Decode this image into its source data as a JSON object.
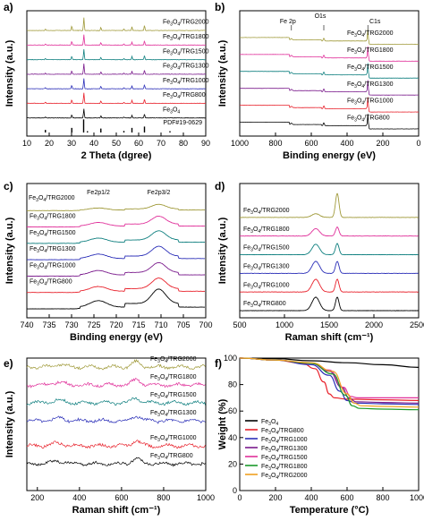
{
  "colors": {
    "black": "#000000",
    "red": "#e8202a",
    "blue": "#2b2fb8",
    "purple": "#7a1a8c",
    "teal": "#0e7f7f",
    "magenta": "#e0309a",
    "olive": "#a09a3a",
    "green": "#1a9a2a",
    "orange": "#f0a020"
  },
  "chart_data": [
    {
      "panel": "a)",
      "type": "line",
      "xlabel": "2 Theta (dgree)",
      "ylabel": "Intensity (a.u.)",
      "xlim": [
        10,
        90
      ],
      "xticks": [
        10,
        20,
        30,
        40,
        50,
        60,
        70,
        80,
        90
      ],
      "reference_label": "PDF#19-0629",
      "reference_peaks": [
        {
          "x": 18.3,
          "h": 0.2
        },
        {
          "x": 30.1,
          "h": 0.35
        },
        {
          "x": 35.4,
          "h": 1.0
        },
        {
          "x": 37.1,
          "h": 0.1
        },
        {
          "x": 43.1,
          "h": 0.3
        },
        {
          "x": 53.4,
          "h": 0.12
        },
        {
          "x": 57.0,
          "h": 0.35
        },
        {
          "x": 62.6,
          "h": 0.45
        },
        {
          "x": 74.0,
          "h": 0.1
        }
      ],
      "peaks": [
        {
          "x": 18.3,
          "h": 0.12
        },
        {
          "x": 30.1,
          "h": 0.35
        },
        {
          "x": 35.5,
          "h": 1.0
        },
        {
          "x": 43.1,
          "h": 0.25
        },
        {
          "x": 53.4,
          "h": 0.12
        },
        {
          "x": 57.0,
          "h": 0.3
        },
        {
          "x": 62.6,
          "h": 0.4
        }
      ],
      "series": [
        {
          "name_main": "Fe",
          "name_sub": "3",
          "name_rest": "O",
          "name_sub2": "4",
          "name_tail": "/TRG2000",
          "color": "#a09a3a",
          "offset": 7,
          "peak_scale": 1.0
        },
        {
          "name_main": "Fe",
          "name_sub": "3",
          "name_rest": "O",
          "name_sub2": "4",
          "name_tail": "/TRG1800",
          "color": "#e0309a",
          "offset": 6,
          "peak_scale": 0.8
        },
        {
          "name_main": "Fe",
          "name_sub": "3",
          "name_rest": "O",
          "name_sub2": "4",
          "name_tail": "/TRG1500",
          "color": "#0e7f7f",
          "offset": 5,
          "peak_scale": 0.8
        },
        {
          "name_main": "Fe",
          "name_sub": "3",
          "name_rest": "O",
          "name_sub2": "4",
          "name_tail": "/TRG1300",
          "color": "#7a1a8c",
          "offset": 4,
          "peak_scale": 0.8
        },
        {
          "name_main": "Fe",
          "name_sub": "3",
          "name_rest": "O",
          "name_sub2": "4",
          "name_tail": "/TRG1000",
          "color": "#2b2fb8",
          "offset": 3,
          "peak_scale": 0.8
        },
        {
          "name_main": "Fe",
          "name_sub": "3",
          "name_rest": "O",
          "name_sub2": "4",
          "name_tail": "/TRG800",
          "color": "#e8202a",
          "offset": 2,
          "peak_scale": 0.8
        },
        {
          "name_main": "Fe",
          "name_sub": "3",
          "name_rest": "O",
          "name_sub2": "4",
          "name_tail": "",
          "color": "#000000",
          "offset": 1,
          "peak_scale": 0.7
        }
      ]
    },
    {
      "panel": "b)",
      "type": "line",
      "xlabel": "Binding energy (eV)",
      "ylabel": "Intensity (a.u.)",
      "xlim": [
        1000,
        0
      ],
      "xticks": [
        1000,
        800,
        600,
        400,
        200,
        0
      ],
      "annotations": [
        {
          "text": "Fe 2p",
          "x": 711
        },
        {
          "text": "O1s",
          "x": 530
        },
        {
          "text": "C1s",
          "x": 284
        }
      ],
      "series": [
        {
          "name_main": "Fe",
          "name_sub": "3",
          "name_rest": "O",
          "name_sub2": "4",
          "name_tail": "/TRG2000",
          "color": "#a09a3a",
          "offset": 6
        },
        {
          "name_main": "Fe",
          "name_sub": "3",
          "name_rest": "O",
          "name_sub2": "4",
          "name_tail": "/TRG1800",
          "color": "#e0309a",
          "offset": 5
        },
        {
          "name_main": "Fe",
          "name_sub": "3",
          "name_rest": "O",
          "name_sub2": "4",
          "name_tail": "/TRG1500",
          "color": "#0e7f7f",
          "offset": 4
        },
        {
          "name_main": "Fe",
          "name_sub": "3",
          "name_rest": "O",
          "name_sub2": "4",
          "name_tail": "/TRG1300",
          "color": "#7a1a8c",
          "offset": 3
        },
        {
          "name_main": "Fe",
          "name_sub": "3",
          "name_rest": "O",
          "name_sub2": "4",
          "name_tail": "/TRG1000",
          "color": "#e8202a",
          "offset": 2
        },
        {
          "name_main": "Fe",
          "name_sub": "3",
          "name_rest": "O",
          "name_sub2": "4",
          "name_tail": "/TRG800",
          "color": "#000000",
          "offset": 1
        }
      ]
    },
    {
      "panel": "c)",
      "type": "line",
      "xlabel": "Binding energy (eV)",
      "ylabel": "Intensity (a.u.)",
      "xlim": [
        740,
        700
      ],
      "xticks": [
        740,
        735,
        730,
        725,
        720,
        715,
        710,
        705,
        700
      ],
      "annotations": [
        {
          "text": "Fe2p1/2",
          "x": 724
        },
        {
          "text": "Fe2p3/2",
          "x": 710.5
        }
      ],
      "series": [
        {
          "name_main": "Fe",
          "name_sub": "3",
          "name_rest": "O",
          "name_sub2": "4",
          "name_tail": "/TRG2000",
          "color": "#a09a3a",
          "offset": 6,
          "amp": 0.35
        },
        {
          "name_main": "Fe",
          "name_sub": "3",
          "name_rest": "O",
          "name_sub2": "4",
          "name_tail": "/TRG1800",
          "color": "#e0309a",
          "offset": 5,
          "amp": 0.6
        },
        {
          "name_main": "Fe",
          "name_sub": "3",
          "name_rest": "O",
          "name_sub2": "4",
          "name_tail": "/TRG1500",
          "color": "#0e7f7f",
          "offset": 4,
          "amp": 0.7
        },
        {
          "name_main": "Fe",
          "name_sub": "3",
          "name_rest": "O",
          "name_sub2": "4",
          "name_tail": "/TRG1300",
          "color": "#2b2fb8",
          "offset": 3,
          "amp": 0.75
        },
        {
          "name_main": "Fe",
          "name_sub": "3",
          "name_rest": "O",
          "name_sub2": "4",
          "name_tail": "/TRG1000",
          "color": "#7a1a8c",
          "offset": 2,
          "amp": 0.75
        },
        {
          "name_main": "Fe",
          "name_sub": "3",
          "name_rest": "O",
          "name_sub2": "4",
          "name_tail": "/TRG800",
          "color": "#e8202a",
          "offset": 1,
          "amp": 0.8
        },
        {
          "name_main": "",
          "name_sub": "",
          "name_rest": "",
          "name_sub2": "",
          "name_tail": "",
          "color": "#000000",
          "offset": 0,
          "amp": 1.1
        }
      ]
    },
    {
      "panel": "d)",
      "type": "line",
      "xlabel": "Raman shift (cm⁻¹)",
      "ylabel": "Intensity (a.u.)",
      "xlim": [
        500,
        2500
      ],
      "xticks": [
        500,
        1000,
        1500,
        2000,
        2500
      ],
      "series": [
        {
          "name_main": "Fe",
          "name_sub": "3",
          "name_rest": "O",
          "name_sub2": "4",
          "name_tail": "/TRG2000",
          "color": "#a09a3a",
          "offset": 5,
          "d": 0.25,
          "g": 1.6
        },
        {
          "name_main": "Fe",
          "name_sub": "3",
          "name_rest": "O",
          "name_sub2": "4",
          "name_tail": "/TRG1800",
          "color": "#e0309a",
          "offset": 4,
          "d": 0.5,
          "g": 0.6
        },
        {
          "name_main": "Fe",
          "name_sub": "3",
          "name_rest": "O",
          "name_sub2": "4",
          "name_tail": "/TRG1500",
          "color": "#0e7f7f",
          "offset": 3,
          "d": 0.7,
          "g": 0.75
        },
        {
          "name_main": "Fe",
          "name_sub": "3",
          "name_rest": "O",
          "name_sub2": "4",
          "name_tail": "/TRG1300",
          "color": "#2b2fb8",
          "offset": 2,
          "d": 0.8,
          "g": 0.8
        },
        {
          "name_main": "Fe",
          "name_sub": "3",
          "name_rest": "O",
          "name_sub2": "4",
          "name_tail": "/TRG1000",
          "color": "#e8202a",
          "offset": 1,
          "d": 0.85,
          "g": 0.85
        },
        {
          "name_main": "Fe",
          "name_sub": "3",
          "name_rest": "O",
          "name_sub2": "4",
          "name_tail": "/TRG800",
          "color": "#000000",
          "offset": 0,
          "d": 0.9,
          "g": 0.9
        }
      ]
    },
    {
      "panel": "e)",
      "type": "line",
      "xlabel": "Raman shift (cm⁻¹)",
      "ylabel": "Intensity (a.u.)",
      "xlim": [
        150,
        1000
      ],
      "xticks": [
        200,
        400,
        600,
        800,
        1000
      ],
      "series": [
        {
          "name_main": "Fe",
          "name_sub": "3",
          "name_rest": "O",
          "name_sub2": "4",
          "name_tail": "/TRG2000",
          "color": "#a09a3a",
          "offset": 6
        },
        {
          "name_main": "Fe",
          "name_sub": "3",
          "name_rest": "O",
          "name_sub2": "4",
          "name_tail": "/TRG1800",
          "color": "#e0309a",
          "offset": 5
        },
        {
          "name_main": "Fe",
          "name_sub": "3",
          "name_rest": "O",
          "name_sub2": "4",
          "name_tail": "/TRG1500",
          "color": "#0e7f7f",
          "offset": 4
        },
        {
          "name_main": "Fe",
          "name_sub": "3",
          "name_rest": "O",
          "name_sub2": "4",
          "name_tail": "/TRG1300",
          "color": "#2b2fb8",
          "offset": 3
        },
        {
          "name_main": "Fe",
          "name_sub": "3",
          "name_rest": "O",
          "name_sub2": "4",
          "name_tail": "/TRG1000",
          "color": "#e8202a",
          "offset": 1.6
        },
        {
          "name_main": "Fe",
          "name_sub": "3",
          "name_rest": "O",
          "name_sub2": "4",
          "name_tail": "/TRG800",
          "color": "#000000",
          "offset": 0.6
        }
      ]
    },
    {
      "panel": "f)",
      "type": "line",
      "xlabel": "Temperature (°C)",
      "ylabel": "Weight (%)",
      "xlim": [
        0,
        1000
      ],
      "ylim": [
        0,
        100
      ],
      "xticks": [
        0,
        200,
        400,
        600,
        800,
        1000
      ],
      "yticks": [
        0,
        20,
        40,
        60,
        80,
        100
      ],
      "series": [
        {
          "name_main": "Fe",
          "name_sub": "3",
          "name_rest": "O",
          "name_sub2": "4",
          "name_tail": "",
          "color": "#000000",
          "x": [
            0,
            200,
            400,
            600,
            800,
            1000
          ],
          "y": [
            100,
            99.5,
            98,
            96.5,
            95,
            93
          ]
        },
        {
          "name_main": "Fe",
          "name_sub": "3",
          "name_rest": "O",
          "name_sub2": "4",
          "name_tail": "/TRG800",
          "color": "#e8202a",
          "x": [
            0,
            200,
            350,
            420,
            470,
            500,
            530,
            600,
            800,
            1000
          ],
          "y": [
            100,
            98.5,
            96,
            92,
            82,
            73,
            70,
            69,
            68.5,
            68
          ]
        },
        {
          "name_main": "Fe",
          "name_sub": "3",
          "name_rest": "O",
          "name_sub2": "4",
          "name_tail": "/TRG1000",
          "color": "#2b2fb8",
          "x": [
            0,
            200,
            400,
            500,
            560,
            600,
            650,
            800,
            1000
          ],
          "y": [
            100,
            98.5,
            95,
            87,
            75,
            68,
            66,
            65.5,
            65
          ]
        },
        {
          "name_main": "Fe",
          "name_sub": "3",
          "name_rest": "O",
          "name_sub2": "4",
          "name_tail": "/TRG1300",
          "color": "#7a1a8c",
          "x": [
            0,
            200,
            400,
            500,
            570,
            610,
            650,
            800,
            1000
          ],
          "y": [
            100,
            98.5,
            96,
            90,
            78,
            70,
            67,
            66.5,
            66
          ]
        },
        {
          "name_main": "Fe",
          "name_sub": "3",
          "name_rest": "O",
          "name_sub2": "4",
          "name_tail": "/TRG1500",
          "color": "#e0309a",
          "x": [
            0,
            200,
            400,
            500,
            580,
            620,
            660,
            800,
            1000
          ],
          "y": [
            100,
            98.5,
            96,
            91,
            78,
            71,
            70,
            70,
            70
          ]
        },
        {
          "name_main": "Fe",
          "name_sub": "3",
          "name_rest": "O",
          "name_sub2": "4",
          "name_tail": "/TRG1800",
          "color": "#1a9a2a",
          "x": [
            0,
            200,
            400,
            520,
            590,
            630,
            670,
            800,
            1000
          ],
          "y": [
            100,
            98.5,
            96,
            88,
            72,
            64,
            62,
            61.5,
            61
          ]
        },
        {
          "name_main": "Fe",
          "name_sub": "3",
          "name_rest": "O",
          "name_sub2": "4",
          "name_tail": "/TRG2000",
          "color": "#f0a020",
          "x": [
            0,
            200,
            400,
            520,
            600,
            640,
            680,
            800,
            1000
          ],
          "y": [
            100,
            98.5,
            96.5,
            90,
            73,
            66,
            64,
            63.5,
            63
          ]
        }
      ]
    }
  ]
}
